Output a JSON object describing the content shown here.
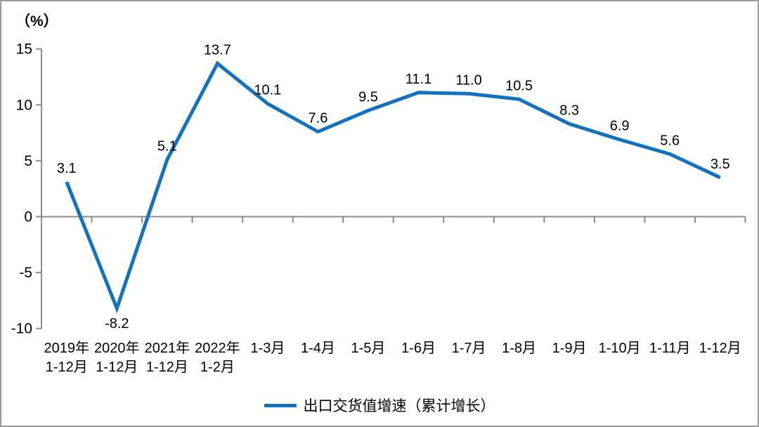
{
  "chart_data": {
    "type": "line",
    "unit_label": "（%）",
    "legend": "出口交货值增速（累计增长）",
    "categories": [
      "2019年\n1-12月",
      "2020年\n1-12月",
      "2021年\n1-12月",
      "2022年\n1-2月",
      "1-3月",
      "1-4月",
      "1-5月",
      "1-6月",
      "1-7月",
      "1-8月",
      "1-9月",
      "1-10月",
      "1-11月",
      "1-12月"
    ],
    "series": [
      {
        "name": "出口交货值增速（累计增长）",
        "values": [
          3.1,
          -8.2,
          5.1,
          13.7,
          10.1,
          7.6,
          9.5,
          11.1,
          11.0,
          10.5,
          8.3,
          6.9,
          5.6,
          3.5
        ]
      }
    ],
    "y_ticks": [
      15,
      10,
      5,
      0,
      -5,
      -10
    ],
    "ylim": [
      -10,
      15
    ],
    "grid": false,
    "legend_position": "bottom",
    "colors": {
      "line": "#1272bf",
      "axis": "#8c8c8c",
      "text": "#000000"
    }
  }
}
